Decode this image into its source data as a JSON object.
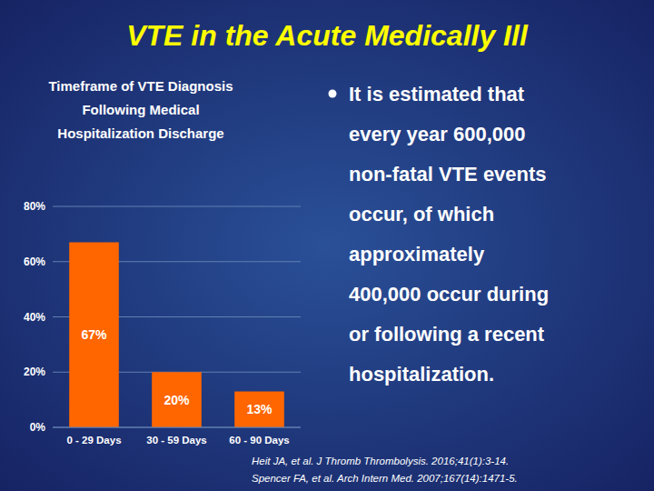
{
  "chart_data": {
    "type": "bar",
    "title": "VTE in the Acute Medically Ill",
    "subtitle": [
      "Timeframe of VTE Diagnosis",
      "Following Medical",
      "Hospitalization Discharge"
    ],
    "categories": [
      "0 - 29 Days",
      "30 - 59 Days",
      "60 - 90 Days"
    ],
    "values": [
      67,
      20,
      13
    ],
    "value_labels": [
      "67%",
      "20%",
      "13%"
    ],
    "data_labels": true,
    "color": "#FF6600",
    "ylim": [
      0,
      80
    ],
    "yticks": [
      {
        "value": 0,
        "label": "0%"
      },
      {
        "value": 20,
        "label": "20%"
      },
      {
        "value": 40,
        "label": "40%"
      },
      {
        "value": 60,
        "label": "60%"
      },
      {
        "value": 80,
        "label": "80%"
      }
    ],
    "grid": true,
    "annotations": [
      "It is estimated that",
      "every year 600,000",
      "non-fatal VTE events",
      "occur, of which",
      "approximately",
      "400,000 occur during",
      "or following a recent",
      "hospitalization."
    ],
    "footnotes": [
      "Heit JA, et al. J Thromb Thrombolysis. 2016;41(1):3-14.",
      "Spencer FA, et al. Arch Intern Med. 2007;167(14):1471-5."
    ]
  }
}
